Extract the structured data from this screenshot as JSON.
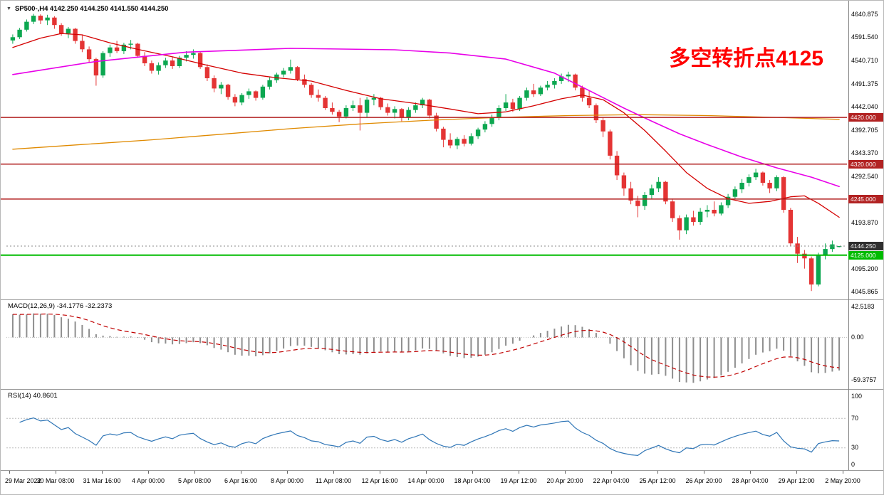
{
  "legend": {
    "text": "SP500-,H4 4142.250 4144.250 4141.550 4144.250"
  },
  "annotation": {
    "text": "多空转折点4125",
    "color": "#FF0000"
  },
  "colors": {
    "up": "#0CA750",
    "down": "#E43434",
    "ma_red": "#D40000",
    "ma_magenta": "#E800E8",
    "ma_orange": "#E08A00",
    "macd_hist": "#8E8E8E",
    "macd_signal": "#C00000",
    "rsi_line": "#2E75B6",
    "level_line": "#BBBBBB"
  },
  "chart_data": {
    "type": "candlestick",
    "symbol": "SP500-",
    "timeframe": "H4",
    "ohlc_readout": {
      "open": 4142.25,
      "high": 4144.25,
      "low": 4141.55,
      "close": 4144.25
    },
    "price_range": {
      "min": 4030,
      "max": 4658
    },
    "price_axis_ticks": [
      "4640.875",
      "4591.540",
      "4540.710",
      "4491.375",
      "4442.040",
      "4392.705",
      "4343.370",
      "4292.540",
      "4193.870",
      "4095.200",
      "4045.865"
    ],
    "hlines": [
      {
        "price": 4420,
        "label": "4420.000",
        "color": "#B22222",
        "width": 1.5
      },
      {
        "price": 4320,
        "label": "4320.000",
        "color": "#B22222",
        "width": 1.5
      },
      {
        "price": 4245,
        "label": "4245.000",
        "color": "#B22222",
        "width": 1.5
      },
      {
        "price": 4125,
        "label": "4125.000",
        "color": "#00BB00",
        "width": 2
      }
    ],
    "current_price": {
      "price": 4144.25,
      "label": "4144.250",
      "line_color": "#8a8a8a",
      "label_bg": "#2F2F2F"
    },
    "x_labels": [
      "29 Mar 2022",
      "30 Mar 08:00",
      "31 Mar 16:00",
      "4 Apr 00:00",
      "5 Apr 08:00",
      "6 Apr 16:00",
      "8 Apr 00:00",
      "11 Apr 08:00",
      "12 Apr 16:00",
      "14 Apr 00:00",
      "18 Apr 04:00",
      "19 Apr 12:00",
      "20 Apr 20:00",
      "22 Apr 04:00",
      "25 Apr 12:00",
      "26 Apr 20:00",
      "28 Apr 04:00",
      "29 Apr 12:00",
      "2 May 20:00"
    ],
    "candles": [
      [
        4585,
        4598,
        4578,
        4592
      ],
      [
        4592,
        4612,
        4588,
        4608
      ],
      [
        4608,
        4630,
        4604,
        4625
      ],
      [
        4625,
        4642,
        4620,
        4638
      ],
      [
        4638,
        4641,
        4620,
        4628
      ],
      [
        4628,
        4640,
        4618,
        4634
      ],
      [
        4634,
        4637,
        4610,
        4618
      ],
      [
        4618,
        4622,
        4595,
        4600
      ],
      [
        4600,
        4614,
        4590,
        4610
      ],
      [
        4610,
        4612,
        4578,
        4584
      ],
      [
        4584,
        4596,
        4560,
        4566
      ],
      [
        4566,
        4572,
        4538,
        4545
      ],
      [
        4545,
        4548,
        4488,
        4510
      ],
      [
        4510,
        4562,
        4505,
        4558
      ],
      [
        4558,
        4576,
        4550,
        4570
      ],
      [
        4570,
        4584,
        4558,
        4562
      ],
      [
        4562,
        4580,
        4556,
        4576
      ],
      [
        4576,
        4586,
        4566,
        4578
      ],
      [
        4578,
        4580,
        4548,
        4552
      ],
      [
        4552,
        4560,
        4530,
        4536
      ],
      [
        4536,
        4542,
        4514,
        4520
      ],
      [
        4520,
        4538,
        4512,
        4532
      ],
      [
        4532,
        4548,
        4526,
        4542
      ],
      [
        4542,
        4550,
        4524,
        4530
      ],
      [
        4530,
        4552,
        4526,
        4548
      ],
      [
        4548,
        4562,
        4540,
        4554
      ],
      [
        4554,
        4566,
        4546,
        4558
      ],
      [
        4558,
        4560,
        4524,
        4528
      ],
      [
        4528,
        4534,
        4498,
        4504
      ],
      [
        4504,
        4510,
        4474,
        4482
      ],
      [
        4482,
        4496,
        4470,
        4490
      ],
      [
        4490,
        4492,
        4458,
        4464
      ],
      [
        4464,
        4470,
        4444,
        4452
      ],
      [
        4452,
        4472,
        4446,
        4468
      ],
      [
        4468,
        4482,
        4460,
        4476
      ],
      [
        4476,
        4478,
        4456,
        4462
      ],
      [
        4462,
        4490,
        4458,
        4486
      ],
      [
        4486,
        4506,
        4480,
        4500
      ],
      [
        4500,
        4516,
        4494,
        4512
      ],
      [
        4512,
        4526,
        4506,
        4520
      ],
      [
        4520,
        4544,
        4514,
        4528
      ],
      [
        4528,
        4530,
        4498,
        4502
      ],
      [
        4502,
        4512,
        4484,
        4490
      ],
      [
        4490,
        4494,
        4462,
        4468
      ],
      [
        4468,
        4480,
        4454,
        4462
      ],
      [
        4462,
        4466,
        4436,
        4440
      ],
      [
        4440,
        4452,
        4426,
        4432
      ],
      [
        4432,
        4436,
        4410,
        4422
      ],
      [
        4422,
        4446,
        4418,
        4440
      ],
      [
        4440,
        4456,
        4434,
        4446
      ],
      [
        4446,
        4462,
        4392,
        4430
      ],
      [
        4430,
        4464,
        4420,
        4458
      ],
      [
        4458,
        4470,
        4446,
        4462
      ],
      [
        4462,
        4464,
        4436,
        4442
      ],
      [
        4442,
        4450,
        4424,
        4430
      ],
      [
        4430,
        4444,
        4418,
        4438
      ],
      [
        4438,
        4440,
        4412,
        4420
      ],
      [
        4420,
        4442,
        4414,
        4436
      ],
      [
        4436,
        4452,
        4430,
        4446
      ],
      [
        4446,
        4462,
        4440,
        4458
      ],
      [
        4458,
        4460,
        4418,
        4424
      ],
      [
        4424,
        4430,
        4390,
        4396
      ],
      [
        4396,
        4400,
        4356,
        4372
      ],
      [
        4372,
        4386,
        4354,
        4360
      ],
      [
        4360,
        4378,
        4352,
        4374
      ],
      [
        4374,
        4382,
        4358,
        4364
      ],
      [
        4364,
        4386,
        4360,
        4380
      ],
      [
        4380,
        4398,
        4374,
        4394
      ],
      [
        4394,
        4412,
        4388,
        4406
      ],
      [
        4406,
        4426,
        4400,
        4420
      ],
      [
        4420,
        4446,
        4414,
        4440
      ],
      [
        4440,
        4470,
        4434,
        4452
      ],
      [
        4452,
        4460,
        4432,
        4438
      ],
      [
        4438,
        4466,
        4434,
        4462
      ],
      [
        4462,
        4484,
        4456,
        4478
      ],
      [
        4478,
        4492,
        4464,
        4470
      ],
      [
        4470,
        4488,
        4466,
        4484
      ],
      [
        4484,
        4498,
        4478,
        4490
      ],
      [
        4490,
        4504,
        4482,
        4498
      ],
      [
        4498,
        4514,
        4492,
        4508
      ],
      [
        4508,
        4518,
        4496,
        4512
      ],
      [
        4512,
        4514,
        4478,
        4484
      ],
      [
        4484,
        4488,
        4454,
        4462
      ],
      [
        4462,
        4478,
        4440,
        4446
      ],
      [
        4446,
        4450,
        4408,
        4414
      ],
      [
        4414,
        4420,
        4378,
        4390
      ],
      [
        4390,
        4394,
        4330,
        4338
      ],
      [
        4338,
        4348,
        4286,
        4296
      ],
      [
        4296,
        4302,
        4252,
        4268
      ],
      [
        4268,
        4282,
        4234,
        4242
      ],
      [
        4242,
        4252,
        4206,
        4230
      ],
      [
        4230,
        4260,
        4222,
        4254
      ],
      [
        4254,
        4276,
        4246,
        4268
      ],
      [
        4268,
        4292,
        4260,
        4282
      ],
      [
        4282,
        4284,
        4234,
        4240
      ],
      [
        4240,
        4246,
        4196,
        4204
      ],
      [
        4204,
        4210,
        4158,
        4178
      ],
      [
        4178,
        4212,
        4170,
        4206
      ],
      [
        4206,
        4220,
        4188,
        4196
      ],
      [
        4196,
        4226,
        4190,
        4218
      ],
      [
        4218,
        4232,
        4206,
        4222
      ],
      [
        4222,
        4240,
        4208,
        4214
      ],
      [
        4214,
        4238,
        4210,
        4232
      ],
      [
        4232,
        4256,
        4226,
        4250
      ],
      [
        4250,
        4272,
        4244,
        4266
      ],
      [
        4266,
        4288,
        4258,
        4280
      ],
      [
        4280,
        4298,
        4272,
        4292
      ],
      [
        4292,
        4310,
        4286,
        4302
      ],
      [
        4302,
        4304,
        4274,
        4280
      ],
      [
        4280,
        4286,
        4258,
        4268
      ],
      [
        4268,
        4296,
        4262,
        4292
      ],
      [
        4292,
        4294,
        4216,
        4222
      ],
      [
        4222,
        4226,
        4144,
        4150
      ],
      [
        4150,
        4164,
        4108,
        4128
      ],
      [
        4128,
        4136,
        4096,
        4118
      ],
      [
        4118,
        4122,
        4048,
        4062
      ],
      [
        4062,
        4130,
        4058,
        4124
      ],
      [
        4124,
        4150,
        4116,
        4138
      ],
      [
        4138,
        4156,
        4132,
        4148
      ],
      [
        4142.25,
        4144.25,
        4141.55,
        4144.25
      ]
    ],
    "overlays": {
      "ma_orange": {
        "name": "long moving average",
        "points": [
          [
            0,
            4352
          ],
          [
            10,
            4362
          ],
          [
            20,
            4372
          ],
          [
            30,
            4384
          ],
          [
            40,
            4396
          ],
          [
            50,
            4406
          ],
          [
            60,
            4414
          ],
          [
            70,
            4420
          ],
          [
            80,
            4424
          ],
          [
            90,
            4426
          ],
          [
            100,
            4424
          ],
          [
            110,
            4420
          ],
          [
            119,
            4416
          ]
        ]
      },
      "ma_red": {
        "name": "medium moving average",
        "points": [
          [
            0,
            4570
          ],
          [
            4,
            4590
          ],
          [
            7,
            4600
          ],
          [
            10,
            4597
          ],
          [
            14,
            4580
          ],
          [
            18,
            4566
          ],
          [
            23,
            4550
          ],
          [
            28,
            4532
          ],
          [
            33,
            4515
          ],
          [
            38,
            4505
          ],
          [
            43,
            4498
          ],
          [
            48,
            4478
          ],
          [
            53,
            4460
          ],
          [
            58,
            4450
          ],
          [
            63,
            4438
          ],
          [
            67,
            4428
          ],
          [
            71,
            4432
          ],
          [
            75,
            4445
          ],
          [
            79,
            4460
          ],
          [
            82,
            4468
          ],
          [
            85,
            4458
          ],
          [
            88,
            4430
          ],
          [
            91,
            4392
          ],
          [
            94,
            4348
          ],
          [
            97,
            4302
          ],
          [
            100,
            4268
          ],
          [
            103,
            4246
          ],
          [
            106,
            4236
          ],
          [
            109,
            4240
          ],
          [
            112,
            4250
          ],
          [
            114,
            4252
          ],
          [
            116,
            4236
          ],
          [
            118,
            4216
          ],
          [
            119,
            4206
          ]
        ]
      },
      "ma_magenta": {
        "name": "slow moving average",
        "points": [
          [
            0,
            4512
          ],
          [
            12,
            4540
          ],
          [
            25,
            4560
          ],
          [
            40,
            4568
          ],
          [
            55,
            4565
          ],
          [
            63,
            4558
          ],
          [
            71,
            4545
          ],
          [
            78,
            4515
          ],
          [
            84,
            4470
          ],
          [
            88,
            4440
          ],
          [
            92,
            4412
          ],
          [
            96,
            4385
          ],
          [
            100,
            4362
          ],
          [
            105,
            4335
          ],
          [
            110,
            4312
          ],
          [
            115,
            4292
          ],
          [
            119,
            4272
          ]
        ]
      }
    },
    "indicators": {
      "macd": {
        "label_text": "MACD(12,26,9) -34.1776 -32.2373",
        "params": [
          12,
          26,
          9
        ],
        "main_value": -34.1776,
        "signal_value": -32.2373,
        "axis_ticks": [
          "42.5183",
          "0.00",
          "-59.3757"
        ],
        "axis_values": [
          42.5183,
          0,
          -59.3757
        ],
        "range": {
          "min": -72,
          "max": 52
        }
      },
      "rsi": {
        "label_text": "RSI(14) 40.8601",
        "period": 14,
        "value": 40.8601,
        "levels": [
          30,
          70
        ],
        "axis_ticks": [
          "100",
          "70",
          "30",
          "0"
        ],
        "axis_values": [
          100,
          70,
          30,
          0
        ]
      }
    }
  }
}
